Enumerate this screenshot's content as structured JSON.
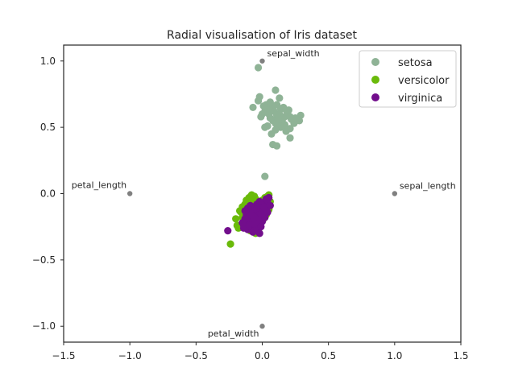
{
  "chart_data": {
    "type": "scatter",
    "title": "Radial visualisation of Iris dataset",
    "xlabel": "",
    "ylabel": "",
    "xlim": [
      -1.5,
      1.5
    ],
    "ylim": [
      -1.12,
      1.12
    ],
    "xticks": [
      -1.5,
      -1.0,
      -0.5,
      0.0,
      0.5,
      1.0,
      1.5
    ],
    "xtick_labels": [
      "−1.5",
      "−1.0",
      "−0.5",
      "0.0",
      "0.5",
      "1.0",
      "1.5"
    ],
    "yticks": [
      1.0,
      0.5,
      0.0,
      -0.5,
      -1.0
    ],
    "ytick_labels": [
      "1.0",
      "0.5",
      "0.0",
      "−0.5",
      "−1.0"
    ],
    "grid": false,
    "legend_position": "upper right",
    "anchors": [
      {
        "name": "sepal_length",
        "x": 1.0,
        "y": 0.0,
        "label_position": "above-right"
      },
      {
        "name": "sepal_width",
        "x": 0.0,
        "y": 1.0,
        "label_position": "above-right"
      },
      {
        "name": "petal_length",
        "x": -1.0,
        "y": 0.0,
        "label_position": "above-left"
      },
      {
        "name": "petal_width",
        "x": 0.0,
        "y": -1.0,
        "label_position": "below-left"
      }
    ],
    "anchor_color": "#808080",
    "series": [
      {
        "name": "setosa",
        "color": "#8fb396",
        "points": [
          [
            -0.03,
            0.95
          ],
          [
            0.1,
            0.78
          ],
          [
            0.13,
            0.72
          ],
          [
            0.08,
            0.66
          ],
          [
            0.11,
            0.67
          ],
          [
            0.14,
            0.64
          ],
          [
            0.05,
            0.64
          ],
          [
            0.02,
            0.62
          ],
          [
            0.0,
            0.6
          ],
          [
            -0.01,
            0.58
          ],
          [
            -0.07,
            0.65
          ],
          [
            -0.03,
            0.7
          ],
          [
            -0.02,
            0.73
          ],
          [
            0.05,
            0.6
          ],
          [
            0.06,
            0.57
          ],
          [
            0.08,
            0.55
          ],
          [
            0.1,
            0.53
          ],
          [
            0.12,
            0.52
          ],
          [
            0.15,
            0.55
          ],
          [
            0.17,
            0.58
          ],
          [
            0.19,
            0.61
          ],
          [
            0.2,
            0.63
          ],
          [
            0.22,
            0.56
          ],
          [
            0.24,
            0.53
          ],
          [
            0.29,
            0.59
          ],
          [
            0.28,
            0.55
          ],
          [
            0.21,
            0.49
          ],
          [
            0.18,
            0.47
          ],
          [
            0.14,
            0.5
          ],
          [
            0.1,
            0.48
          ],
          [
            0.07,
            0.45
          ],
          [
            0.04,
            0.51
          ],
          [
            0.02,
            0.5
          ],
          [
            0.16,
            0.65
          ],
          [
            0.18,
            0.63
          ],
          [
            0.13,
            0.6
          ],
          [
            0.09,
            0.62
          ],
          [
            0.03,
            0.67
          ],
          [
            0.01,
            0.66
          ],
          [
            0.06,
            0.69
          ],
          [
            0.11,
            0.59
          ],
          [
            0.15,
            0.51
          ],
          [
            0.17,
            0.52
          ],
          [
            0.21,
            0.58
          ],
          [
            0.08,
            0.37
          ],
          [
            0.11,
            0.36
          ],
          [
            0.21,
            0.42
          ],
          [
            0.12,
            0.56
          ],
          [
            0.25,
            0.57
          ],
          [
            0.02,
            0.13
          ]
        ]
      },
      {
        "name": "versicolor",
        "color": "#6aba0a",
        "points": [
          [
            -0.24,
            -0.38
          ],
          [
            -0.2,
            -0.19
          ],
          [
            -0.19,
            -0.24
          ],
          [
            -0.16,
            -0.14
          ],
          [
            -0.15,
            -0.1
          ],
          [
            -0.13,
            -0.08
          ],
          [
            -0.12,
            -0.05
          ],
          [
            -0.1,
            -0.03
          ],
          [
            -0.08,
            -0.01
          ],
          [
            -0.06,
            -0.02
          ],
          [
            -0.05,
            -0.04
          ],
          [
            -0.03,
            -0.06
          ],
          [
            -0.02,
            -0.1
          ],
          [
            0.0,
            -0.05
          ],
          [
            0.02,
            -0.03
          ],
          [
            0.04,
            -0.02
          ],
          [
            0.05,
            -0.01
          ],
          [
            0.04,
            -0.08
          ],
          [
            0.02,
            -0.12
          ],
          [
            0.0,
            -0.15
          ],
          [
            -0.02,
            -0.18
          ],
          [
            -0.04,
            -0.2
          ],
          [
            -0.06,
            -0.22
          ],
          [
            -0.08,
            -0.2
          ],
          [
            -0.1,
            -0.17
          ],
          [
            -0.12,
            -0.15
          ],
          [
            -0.14,
            -0.22
          ],
          [
            -0.11,
            -0.26
          ],
          [
            -0.07,
            -0.25
          ],
          [
            -0.03,
            -0.24
          ],
          [
            -0.03,
            -0.28
          ],
          [
            -0.01,
            -0.21
          ],
          [
            0.01,
            -0.19
          ],
          [
            0.03,
            -0.16
          ],
          [
            0.05,
            -0.12
          ],
          [
            0.06,
            -0.06
          ],
          [
            -0.09,
            -0.11
          ],
          [
            -0.05,
            -0.13
          ],
          [
            -0.01,
            -0.09
          ],
          [
            -0.07,
            -0.07
          ],
          [
            -0.11,
            -0.09
          ],
          [
            -0.15,
            -0.18
          ],
          [
            -0.17,
            -0.13
          ],
          [
            -0.13,
            -0.12
          ],
          [
            -0.06,
            -0.16
          ],
          [
            -0.04,
            -0.11
          ],
          [
            0.03,
            -0.09
          ],
          [
            -0.09,
            -0.28
          ],
          [
            -0.05,
            -0.3
          ],
          [
            -0.18,
            -0.26
          ]
        ]
      },
      {
        "name": "virginica",
        "color": "#720e8c",
        "points": [
          [
            -0.26,
            -0.28
          ],
          [
            -0.14,
            -0.24
          ],
          [
            -0.12,
            -0.21
          ],
          [
            -0.1,
            -0.19
          ],
          [
            -0.08,
            -0.17
          ],
          [
            -0.06,
            -0.15
          ],
          [
            -0.04,
            -0.13
          ],
          [
            -0.02,
            -0.11
          ],
          [
            0.0,
            -0.09
          ],
          [
            0.02,
            -0.07
          ],
          [
            0.04,
            -0.05
          ],
          [
            0.05,
            -0.03
          ],
          [
            -0.09,
            -0.23
          ],
          [
            -0.07,
            -0.21
          ],
          [
            -0.05,
            -0.19
          ],
          [
            -0.03,
            -0.17
          ],
          [
            -0.01,
            -0.15
          ],
          [
            0.01,
            -0.13
          ],
          [
            0.03,
            -0.11
          ],
          [
            -0.11,
            -0.27
          ],
          [
            -0.08,
            -0.26
          ],
          [
            -0.05,
            -0.25
          ],
          [
            -0.02,
            -0.23
          ],
          [
            0.0,
            -0.21
          ],
          [
            -0.12,
            -0.16
          ],
          [
            -0.1,
            -0.14
          ],
          [
            -0.08,
            -0.12
          ],
          [
            -0.06,
            -0.1
          ],
          [
            -0.04,
            -0.08
          ],
          [
            -0.13,
            -0.19
          ],
          [
            -0.15,
            -0.22
          ],
          [
            -0.07,
            -0.29
          ],
          [
            -0.04,
            -0.27
          ],
          [
            -0.01,
            -0.25
          ],
          [
            0.02,
            -0.18
          ],
          [
            0.04,
            -0.14
          ],
          [
            0.06,
            -0.09
          ],
          [
            -0.02,
            -0.06
          ],
          [
            -0.09,
            -0.09
          ],
          [
            -0.11,
            -0.11
          ],
          [
            -0.03,
            -0.2
          ],
          [
            -0.06,
            -0.18
          ],
          [
            -0.09,
            -0.16
          ],
          [
            0.01,
            -0.1
          ],
          [
            -0.14,
            -0.26
          ],
          [
            -0.1,
            -0.24
          ],
          [
            -0.06,
            -0.23
          ],
          [
            -0.02,
            -0.3
          ],
          [
            -0.13,
            -0.13
          ],
          [
            0.03,
            -0.04
          ]
        ]
      }
    ]
  }
}
